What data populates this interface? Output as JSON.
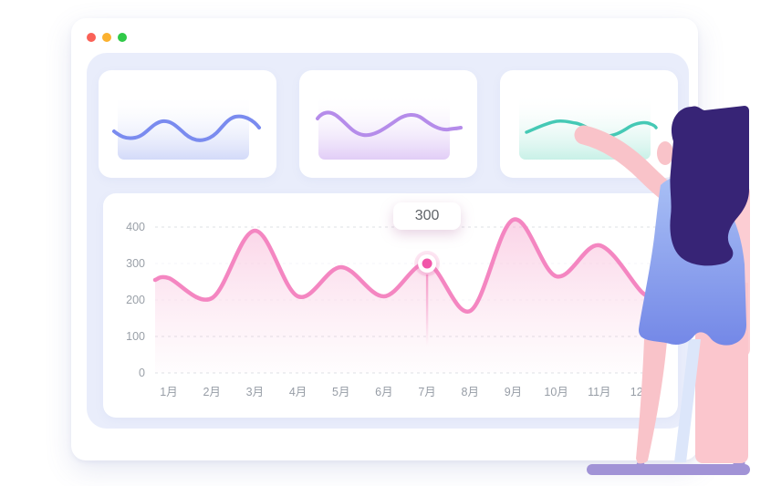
{
  "window": {
    "traffic_lights": [
      {
        "name": "close",
        "color": "#fa6157"
      },
      {
        "name": "minimize",
        "color": "#fbb12f"
      },
      {
        "name": "zoom",
        "color": "#30c948"
      }
    ]
  },
  "chart_data": [
    {
      "type": "area",
      "title": "",
      "categories": [
        "1月",
        "2月",
        "3月",
        "4月",
        "5月",
        "6月",
        "7月",
        "8月",
        "9月",
        "10月",
        "11月",
        "12月"
      ],
      "values": [
        260,
        205,
        390,
        210,
        290,
        210,
        300,
        170,
        420,
        265,
        350,
        220
      ],
      "xlabel": "",
      "ylabel": "",
      "ylim": [
        0,
        400
      ],
      "y_ticks": [
        400,
        300,
        200,
        100,
        0
      ],
      "grid": "dashed-horizontal",
      "legend": "none",
      "line_color": "#f486c1",
      "fill_color": "#fbd9ea",
      "highlight": {
        "index": 6,
        "category": "7月",
        "tooltip_value": "300",
        "point_color": "#f156a9"
      }
    },
    {
      "type": "line",
      "name": "sparkline-blue",
      "line_color": "#7a8bef",
      "fill_color": "#dfe3fb",
      "shape_values": [
        31,
        42,
        23,
        48,
        35
      ]
    },
    {
      "type": "line",
      "name": "sparkline-purple",
      "line_color": "#b58cea",
      "fill_color": "#eeddfb",
      "shape_values": [
        45,
        50,
        27,
        48,
        34
      ]
    },
    {
      "type": "line",
      "name": "sparkline-teal",
      "line_color": "#45c9b5",
      "fill_color": "#d9f4ee",
      "shape_values": [
        30,
        42,
        25,
        37,
        36
      ]
    }
  ],
  "illustration": {
    "name": "woman-presenting-at-dashboard",
    "hair_color": "#372476",
    "skin_color": "#f9c3c9",
    "dress_color": "#7e95ea",
    "platform_color": "#a193d6",
    "board_color": "#fccdd3"
  }
}
